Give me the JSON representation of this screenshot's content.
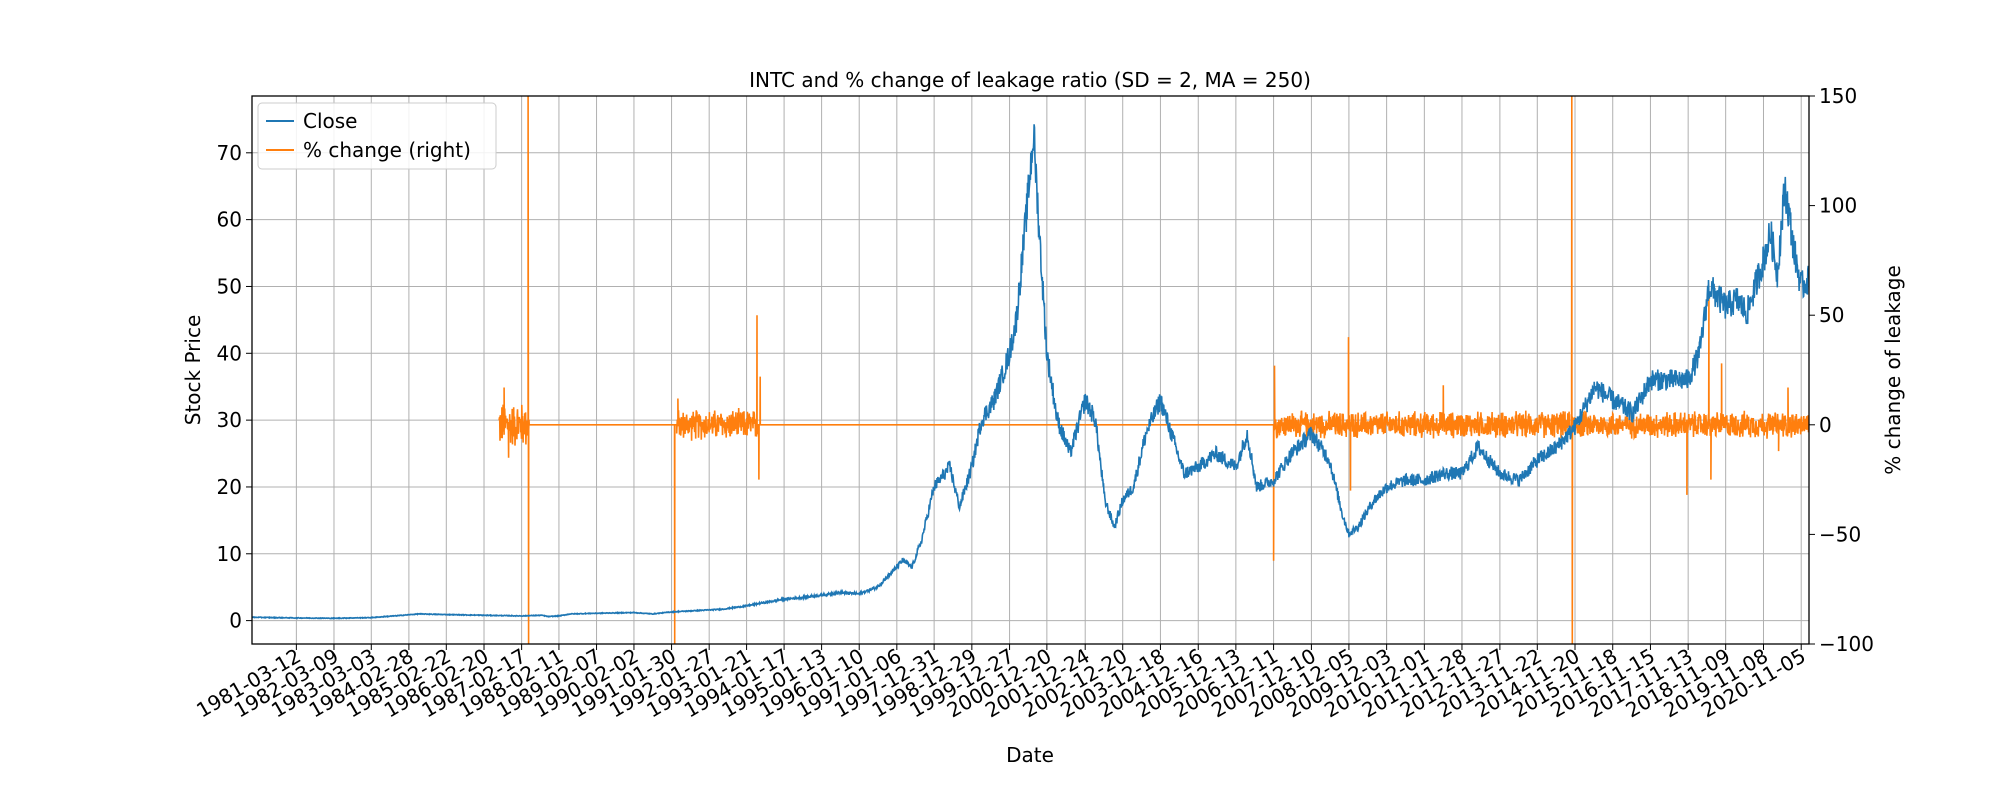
{
  "chart_data": {
    "type": "line",
    "title": "INTC and % change of leakage ratio (SD = 2, MA = 250)",
    "xlabel": "Date",
    "ylabel": "Stock Price",
    "ylabel_right": "% change of leakage",
    "ylim": [
      -3.5,
      78.5
    ],
    "ylim_right": [
      -100,
      150
    ],
    "yticks": [
      0,
      10,
      20,
      30,
      40,
      50,
      60,
      70
    ],
    "yticks_right": [
      -100,
      -50,
      0,
      50,
      100,
      150
    ],
    "ytick_labels_right": [
      "−100",
      "−50",
      "0",
      "50",
      "100",
      "150"
    ],
    "xlim": [
      "1980-01-10",
      "2021-01-19"
    ],
    "xtick_labels": [
      "1981-03-12",
      "1982-03-09",
      "1983-03-03",
      "1984-02-28",
      "1985-02-22",
      "1986-02-20",
      "1987-02-17",
      "1988-02-11",
      "1989-02-07",
      "1990-02-02",
      "1991-01-30",
      "1992-01-27",
      "1993-01-21",
      "1994-01-17",
      "1995-01-13",
      "1996-01-10",
      "1997-01-06",
      "1997-12-31",
      "1998-12-29",
      "1999-12-27",
      "2000-12-20",
      "2001-12-24",
      "2002-12-20",
      "2003-12-18",
      "2004-12-16",
      "2005-12-13",
      "2006-12-11",
      "2007-12-10",
      "2008-12-05",
      "2009-12-03",
      "2010-12-01",
      "2011-11-28",
      "2012-11-27",
      "2013-11-22",
      "2014-11-20",
      "2015-11-18",
      "2016-11-15",
      "2017-11-13",
      "2018-11-09",
      "2019-11-08",
      "2020-11-05"
    ],
    "grid": true,
    "legend_position": "upper-left",
    "series": [
      {
        "name": "Close",
        "axis": "left",
        "color": "#1f77b4",
        "x": [
          "1980-01-10",
          "1981-03-12",
          "1982-03-09",
          "1983-03-03",
          "1984-01-01",
          "1984-06-01",
          "1985-02-22",
          "1986-02-20",
          "1987-02-17",
          "1987-09-01",
          "1987-11-01",
          "1988-02-11",
          "1988-06-01",
          "1989-02-07",
          "1990-02-02",
          "1990-08-01",
          "1991-01-30",
          "1991-06-01",
          "1992-01-27",
          "1992-06-01",
          "1993-01-21",
          "1993-06-01",
          "1994-01-17",
          "1994-06-01",
          "1995-01-13",
          "1995-07-01",
          "1996-01-10",
          "1996-07-01",
          "1997-01-06",
          "1997-03-01",
          "1997-06-01",
          "1997-09-01",
          "1997-12-31",
          "1998-06-01",
          "1998-09-01",
          "1998-12-29",
          "1999-04-01",
          "1999-08-01",
          "1999-12-27",
          "2000-03-01",
          "2000-06-01",
          "2000-08-15",
          "2000-10-01",
          "2000-12-20",
          "2001-04-01",
          "2001-08-01",
          "2001-12-24",
          "2002-04-01",
          "2002-07-01",
          "2002-10-01",
          "2002-12-20",
          "2003-04-01",
          "2003-08-01",
          "2003-12-18",
          "2004-04-01",
          "2004-08-01",
          "2004-12-16",
          "2005-06-01",
          "2005-12-13",
          "2006-04-01",
          "2006-07-01",
          "2006-12-11",
          "2007-06-01",
          "2007-12-10",
          "2008-06-01",
          "2008-10-01",
          "2008-12-05",
          "2009-03-01",
          "2009-08-01",
          "2009-12-03",
          "2010-06-01",
          "2010-12-01",
          "2011-06-01",
          "2011-11-28",
          "2012-05-01",
          "2012-11-27",
          "2013-06-01",
          "2013-11-22",
          "2014-06-01",
          "2014-11-20",
          "2015-06-01",
          "2015-11-18",
          "2016-06-01",
          "2016-11-15",
          "2017-06-01",
          "2017-11-13",
          "2018-03-01",
          "2018-06-01",
          "2018-11-09",
          "2019-03-01",
          "2019-06-01",
          "2019-11-08",
          "2020-01-15",
          "2020-03-20",
          "2020-06-01",
          "2020-09-01",
          "2020-11-05",
          "2021-01-19"
        ],
        "values": [
          0.5,
          0.4,
          0.35,
          0.45,
          0.8,
          1.0,
          0.9,
          0.8,
          0.7,
          0.8,
          0.6,
          0.7,
          1.0,
          1.1,
          1.2,
          1.0,
          1.3,
          1.4,
          1.6,
          1.7,
          2.2,
          2.6,
          3.2,
          3.4,
          3.8,
          4.2,
          4.0,
          5.0,
          8.0,
          9.0,
          8.0,
          12.0,
          20.0,
          23.0,
          17.0,
          23.0,
          30.0,
          33.0,
          40.0,
          45.0,
          60.0,
          73.0,
          60.0,
          40.0,
          30.0,
          25.0,
          33.0,
          30.0,
          18.0,
          14.0,
          18.0,
          20.0,
          28.0,
          33.0,
          28.0,
          22.0,
          23.0,
          25.0,
          23.0,
          28.0,
          20.0,
          21.0,
          25.0,
          28.0,
          24.0,
          16.0,
          13.0,
          14.0,
          18.0,
          20.0,
          21.0,
          21.0,
          22.0,
          22.0,
          26.0,
          22.0,
          21.0,
          24.0,
          26.0,
          29.0,
          35.0,
          33.0,
          31.0,
          36.0,
          36.0,
          36.0,
          40.0,
          50.0,
          47.0,
          48.0,
          46.0,
          54.0,
          58.0,
          52.0,
          65.0,
          55.0,
          50.0,
          51.0
        ]
      },
      {
        "name": "% change (right)",
        "axis": "right",
        "color": "#ff7f0e",
        "segments": [
          {
            "start": "1986-07-15",
            "end": "1987-05-01",
            "level": 0,
            "amplitude": 12
          },
          {
            "start": "1987-05-01",
            "end": "1991-03-20",
            "level": 0,
            "amplitude": 0
          },
          {
            "start": "1991-03-20",
            "end": "1993-05-15",
            "level": 0,
            "amplitude": 8
          },
          {
            "start": "1993-05-15",
            "end": "2006-12-11",
            "level": 0,
            "amplitude": 0
          },
          {
            "start": "2006-12-11",
            "end": "2021-01-19",
            "level": 0,
            "amplitude": 7
          }
        ],
        "spikes": [
          {
            "date": "1986-09-01",
            "value": 17
          },
          {
            "date": "1986-10-15",
            "value": -15
          },
          {
            "date": "1987-04-20",
            "value": 150
          },
          {
            "date": "1987-04-25",
            "value": -100
          },
          {
            "date": "1991-03-01",
            "value": -100
          },
          {
            "date": "1991-04-01",
            "value": 12
          },
          {
            "date": "1993-05-01",
            "value": 50
          },
          {
            "date": "1993-05-20",
            "value": -25
          },
          {
            "date": "1993-06-01",
            "value": 22
          },
          {
            "date": "2006-12-11",
            "value": -62
          },
          {
            "date": "2006-12-20",
            "value": 27
          },
          {
            "date": "2008-12-01",
            "value": 40
          },
          {
            "date": "2008-12-20",
            "value": -30
          },
          {
            "date": "2011-06-01",
            "value": 18
          },
          {
            "date": "2014-10-20",
            "value": 150
          },
          {
            "date": "2014-10-25",
            "value": -100
          },
          {
            "date": "2017-11-01",
            "value": -32
          },
          {
            "date": "2018-06-01",
            "value": 60
          },
          {
            "date": "2018-06-20",
            "value": -25
          },
          {
            "date": "2018-10-01",
            "value": 28
          },
          {
            "date": "2020-04-01",
            "value": -12
          },
          {
            "date": "2020-07-01",
            "value": 17
          }
        ]
      }
    ]
  }
}
